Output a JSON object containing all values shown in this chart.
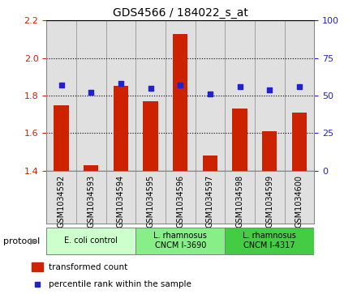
{
  "title": "GDS4566 / 184022_s_at",
  "samples": [
    "GSM1034592",
    "GSM1034593",
    "GSM1034594",
    "GSM1034595",
    "GSM1034596",
    "GSM1034597",
    "GSM1034598",
    "GSM1034599",
    "GSM1034600"
  ],
  "transformed_count": [
    1.75,
    1.43,
    1.85,
    1.77,
    2.13,
    1.48,
    1.73,
    1.61,
    1.71
  ],
  "percentile_rank": [
    57,
    52,
    58,
    55,
    57,
    51,
    56,
    54,
    56
  ],
  "bar_color": "#cc2200",
  "dot_color": "#2222cc",
  "ylim_left": [
    1.4,
    2.2
  ],
  "ylim_right": [
    0,
    100
  ],
  "yticks_left": [
    1.4,
    1.6,
    1.8,
    2.0,
    2.2
  ],
  "yticks_right": [
    0,
    25,
    50,
    75,
    100
  ],
  "protocol_groups": [
    {
      "label": "E. coli control",
      "indices": [
        0,
        1,
        2
      ],
      "color": "#ccffcc"
    },
    {
      "label": "L. rhamnosus\nCNCM I-3690",
      "indices": [
        3,
        4,
        5
      ],
      "color": "#88ee88"
    },
    {
      "label": "L. rhamnosus\nCNCM I-4317",
      "indices": [
        6,
        7,
        8
      ],
      "color": "#44cc44"
    }
  ],
  "legend_bar_label": "transformed count",
  "legend_dot_label": "percentile rank within the sample",
  "protocol_label": "protocol",
  "cell_bg_color": "#e0e0e0",
  "cell_edge_color": "#888888"
}
